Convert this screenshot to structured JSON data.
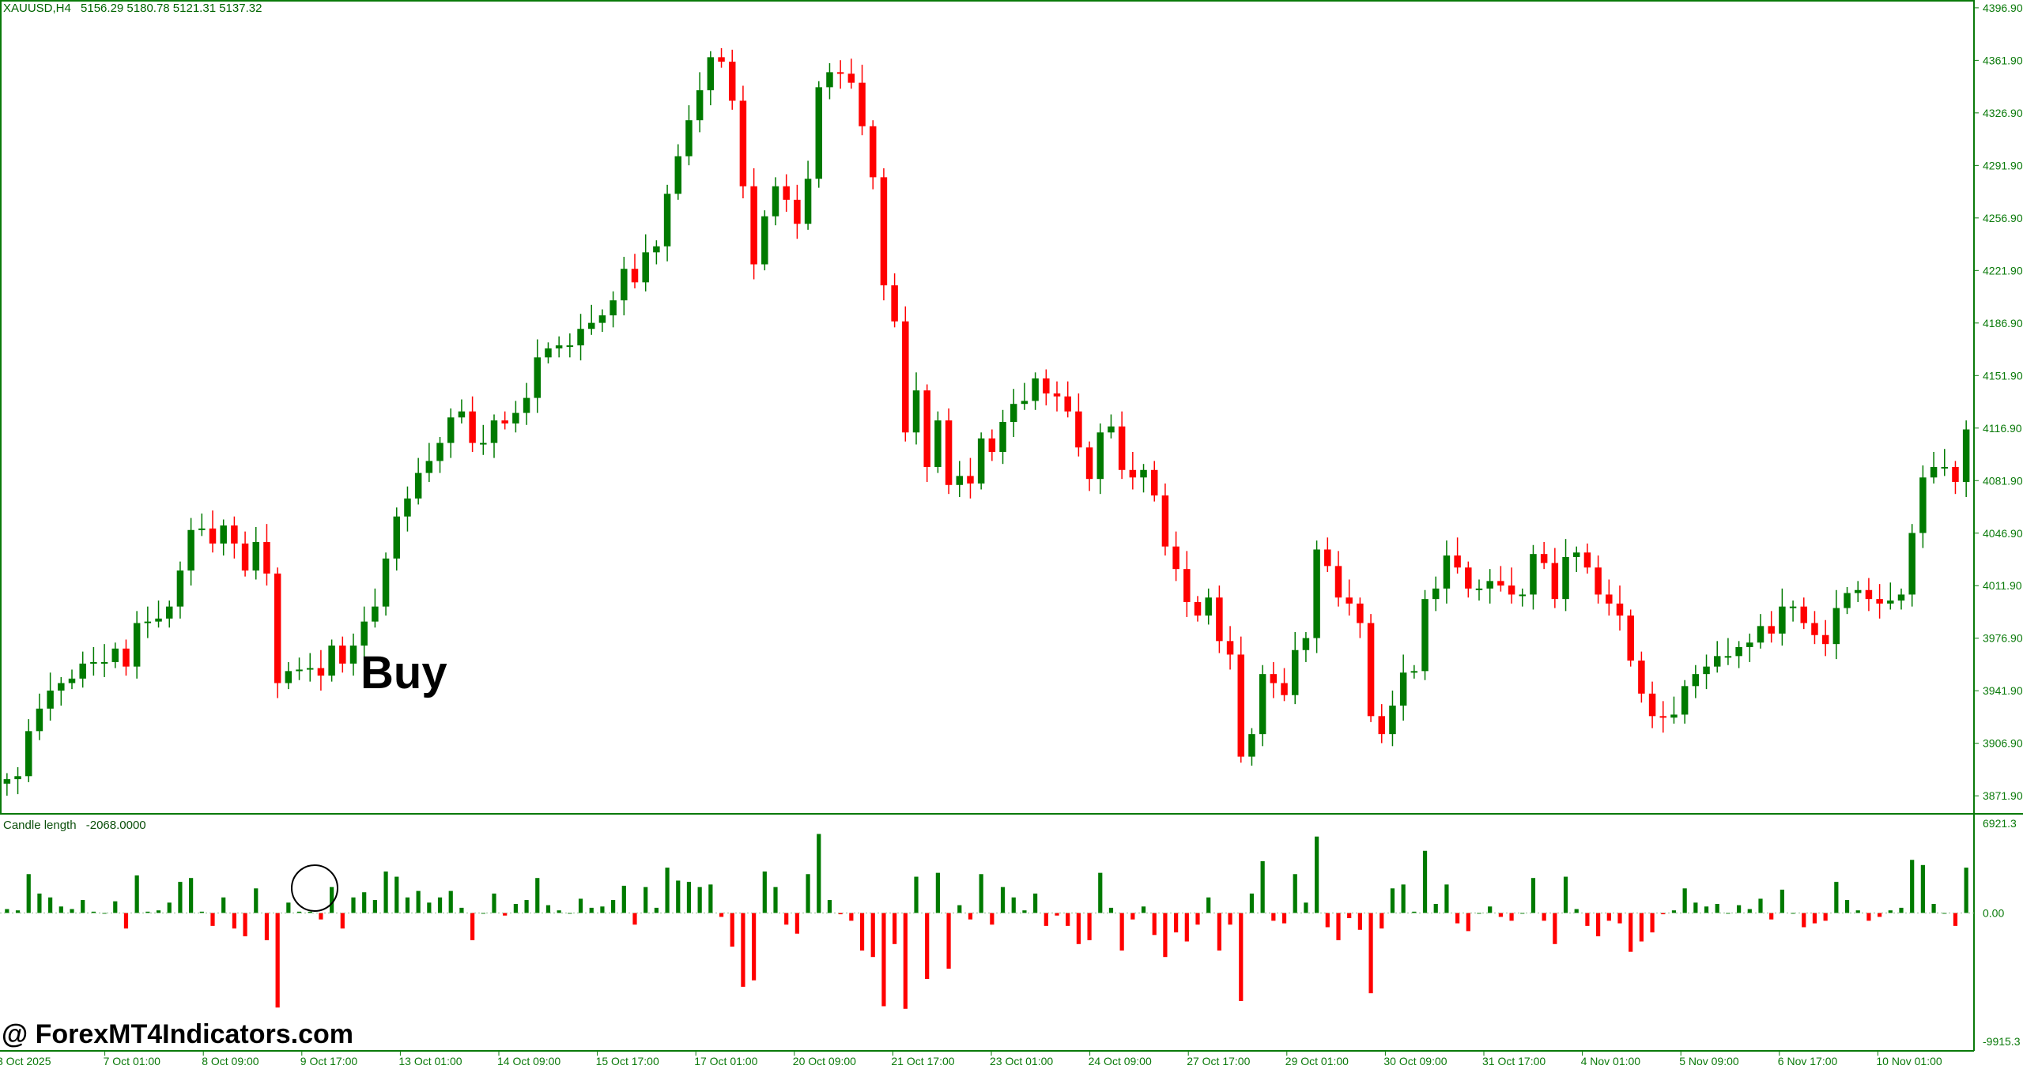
{
  "header": {
    "symbol": "XAUUSD,H4",
    "ohlc": "5156.29 5180.78 5121.31 5137.32"
  },
  "indicator": {
    "name": "Candle length",
    "value": "-2068.0000",
    "axis_labels": [
      "6921.3",
      "0.00",
      "-9915.3"
    ]
  },
  "overlay": {
    "signal_text": "Buy",
    "watermark": "@ ForexMT4Indicators.com"
  },
  "colors": {
    "bull": "#007a00",
    "bear": "#ff0000",
    "axis": "#0a7a0a",
    "text": "#000000",
    "background": "#ffffff",
    "signal_circle": "#000000"
  },
  "chart_data": {
    "type": "candlestick",
    "symbol": "XAUUSD",
    "timeframe": "H4",
    "price_axis_ticks": [
      "4396.90",
      "4361.90",
      "4326.90",
      "4291.90",
      "4256.90",
      "4221.90",
      "4186.90",
      "4151.90",
      "4116.90",
      "4081.90",
      "4046.90",
      "4011.90",
      "3976.90",
      "3941.90",
      "3906.90",
      "3871.90"
    ],
    "ylim": [
      3862,
      4400
    ],
    "time_axis_labels": [
      "3 Oct 2025",
      "7 Oct 01:00",
      "8 Oct 09:00",
      "9 Oct 17:00",
      "13 Oct 01:00",
      "14 Oct 09:00",
      "15 Oct 17:00",
      "17 Oct 01:00",
      "20 Oct 09:00",
      "21 Oct 17:00",
      "23 Oct 01:00",
      "24 Oct 09:00",
      "27 Oct 17:00",
      "29 Oct 01:00",
      "30 Oct 09:00",
      "31 Oct 17:00",
      "4 Nov 01:00",
      "5 Nov 09:00",
      "6 Nov 17:00",
      "10 Nov 01:00"
    ],
    "close": [
      3883,
      3885,
      3915,
      3930,
      3942,
      3947,
      3950,
      3960,
      3961,
      3961,
      3970,
      3958,
      3987,
      3988,
      3990,
      3998,
      4022,
      4049,
      4050,
      4040,
      4052,
      4040,
      4022,
      4041,
      4020,
      3947,
      3955,
      3956,
      3957,
      3952,
      3972,
      3960,
      3972,
      3988,
      3998,
      4030,
      4058,
      4070,
      4087,
      4095,
      4107,
      4124,
      4128,
      4107,
      4107,
      4122,
      4120,
      4127,
      4137,
      4164,
      4170,
      4172,
      4172,
      4183,
      4187,
      4192,
      4202,
      4223,
      4214,
      4234,
      4238,
      4273,
      4298,
      4322,
      4342,
      4364,
      4361,
      4335,
      4278,
      4226,
      4258,
      4278,
      4269,
      4253,
      4283,
      4344,
      4354,
      4353,
      4347,
      4318,
      4284,
      4212,
      4188,
      4114,
      4142,
      4091,
      4122,
      4079,
      4085,
      4080,
      4110,
      4101,
      4121,
      4133,
      4135,
      4150,
      4140,
      4138,
      4128,
      4104,
      4083,
      4114,
      4118,
      4089,
      4084,
      4089,
      4072,
      4038,
      4023,
      4001,
      3992,
      4004,
      3975,
      3966,
      3898,
      3913,
      3953,
      3947,
      3939,
      3969,
      3977,
      4036,
      4025,
      4004,
      4000,
      3987,
      3925,
      3913,
      3932,
      3954,
      3955,
      4003,
      4010,
      4032,
      4024,
      4010,
      4010,
      4015,
      4012,
      4006,
      4006,
      4033,
      4027,
      4003,
      4031,
      4034,
      4024,
      4006,
      4000,
      3992,
      3962,
      3940,
      3925,
      3924,
      3926,
      3945,
      3953,
      3958,
      3965,
      3965,
      3971,
      3974,
      3985,
      3980,
      3998,
      3998,
      3987,
      3979,
      3973,
      3997,
      4007,
      4009,
      4003,
      4000,
      4002,
      4006,
      4047,
      4084,
      4091,
      4091,
      4081,
      4116
    ]
  }
}
